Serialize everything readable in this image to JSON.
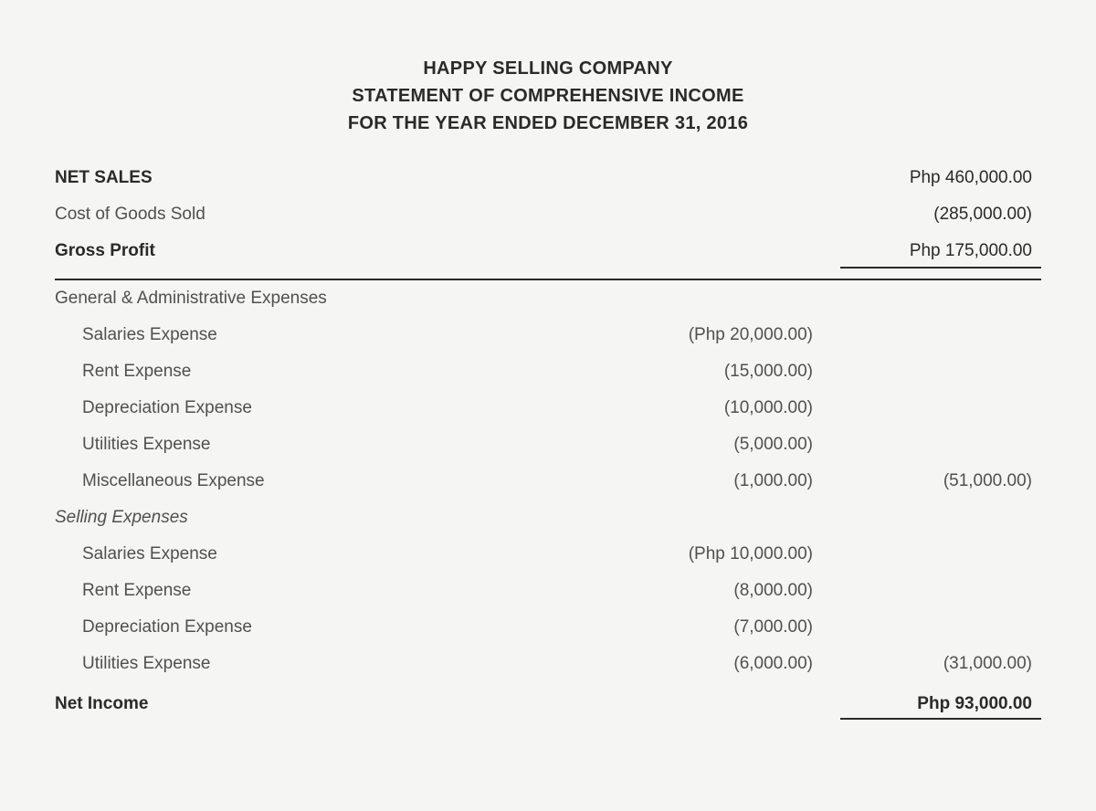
{
  "header": {
    "company": "HAPPY SELLING COMPANY",
    "title": "STATEMENT OF COMPREHENSIVE INCOME",
    "period": "FOR THE YEAR ENDED DECEMBER 31, 2016"
  },
  "lines": {
    "net_sales": {
      "label": "NET SALES",
      "value": "Php 460,000.00"
    },
    "cogs": {
      "label": "Cost of Goods Sold",
      "value": "(285,000.00)"
    },
    "gross_profit": {
      "label": "Gross Profit",
      "value": "Php 175,000.00"
    },
    "ga_header": "General & Administrative Expenses",
    "ga": {
      "salaries": {
        "label": "Salaries Expense",
        "value": "(Php 20,000.00)"
      },
      "rent": {
        "label": "Rent Expense",
        "value": "(15,000.00)"
      },
      "depreciation": {
        "label": "Depreciation Expense",
        "value": "(10,000.00)"
      },
      "utilities": {
        "label": "Utilities Expense",
        "value": "(5,000.00)"
      },
      "misc": {
        "label": "Miscellaneous Expense",
        "value": "(1,000.00)",
        "subtotal": "(51,000.00)"
      }
    },
    "selling_header": "Selling Expenses",
    "selling": {
      "salaries": {
        "label": "Salaries Expense",
        "value": "(Php 10,000.00)"
      },
      "rent": {
        "label": "Rent Expense",
        "value": "(8,000.00)"
      },
      "depreciation": {
        "label": "Depreciation Expense",
        "value": "(7,000.00)"
      },
      "utilities": {
        "label": "Utilities Expense",
        "value": "(6,000.00)",
        "subtotal": "(31,000.00)"
      }
    },
    "net_income": {
      "label": "Net Income",
      "value": "Php 93,000.00"
    }
  },
  "colors": {
    "background": "#f5f5f3",
    "text": "#2a2a2a",
    "light_text": "#505050",
    "rule": "#2a2a2a"
  },
  "typography": {
    "header_fontsize": 20,
    "body_fontsize": 19,
    "font_family": "Arial"
  }
}
